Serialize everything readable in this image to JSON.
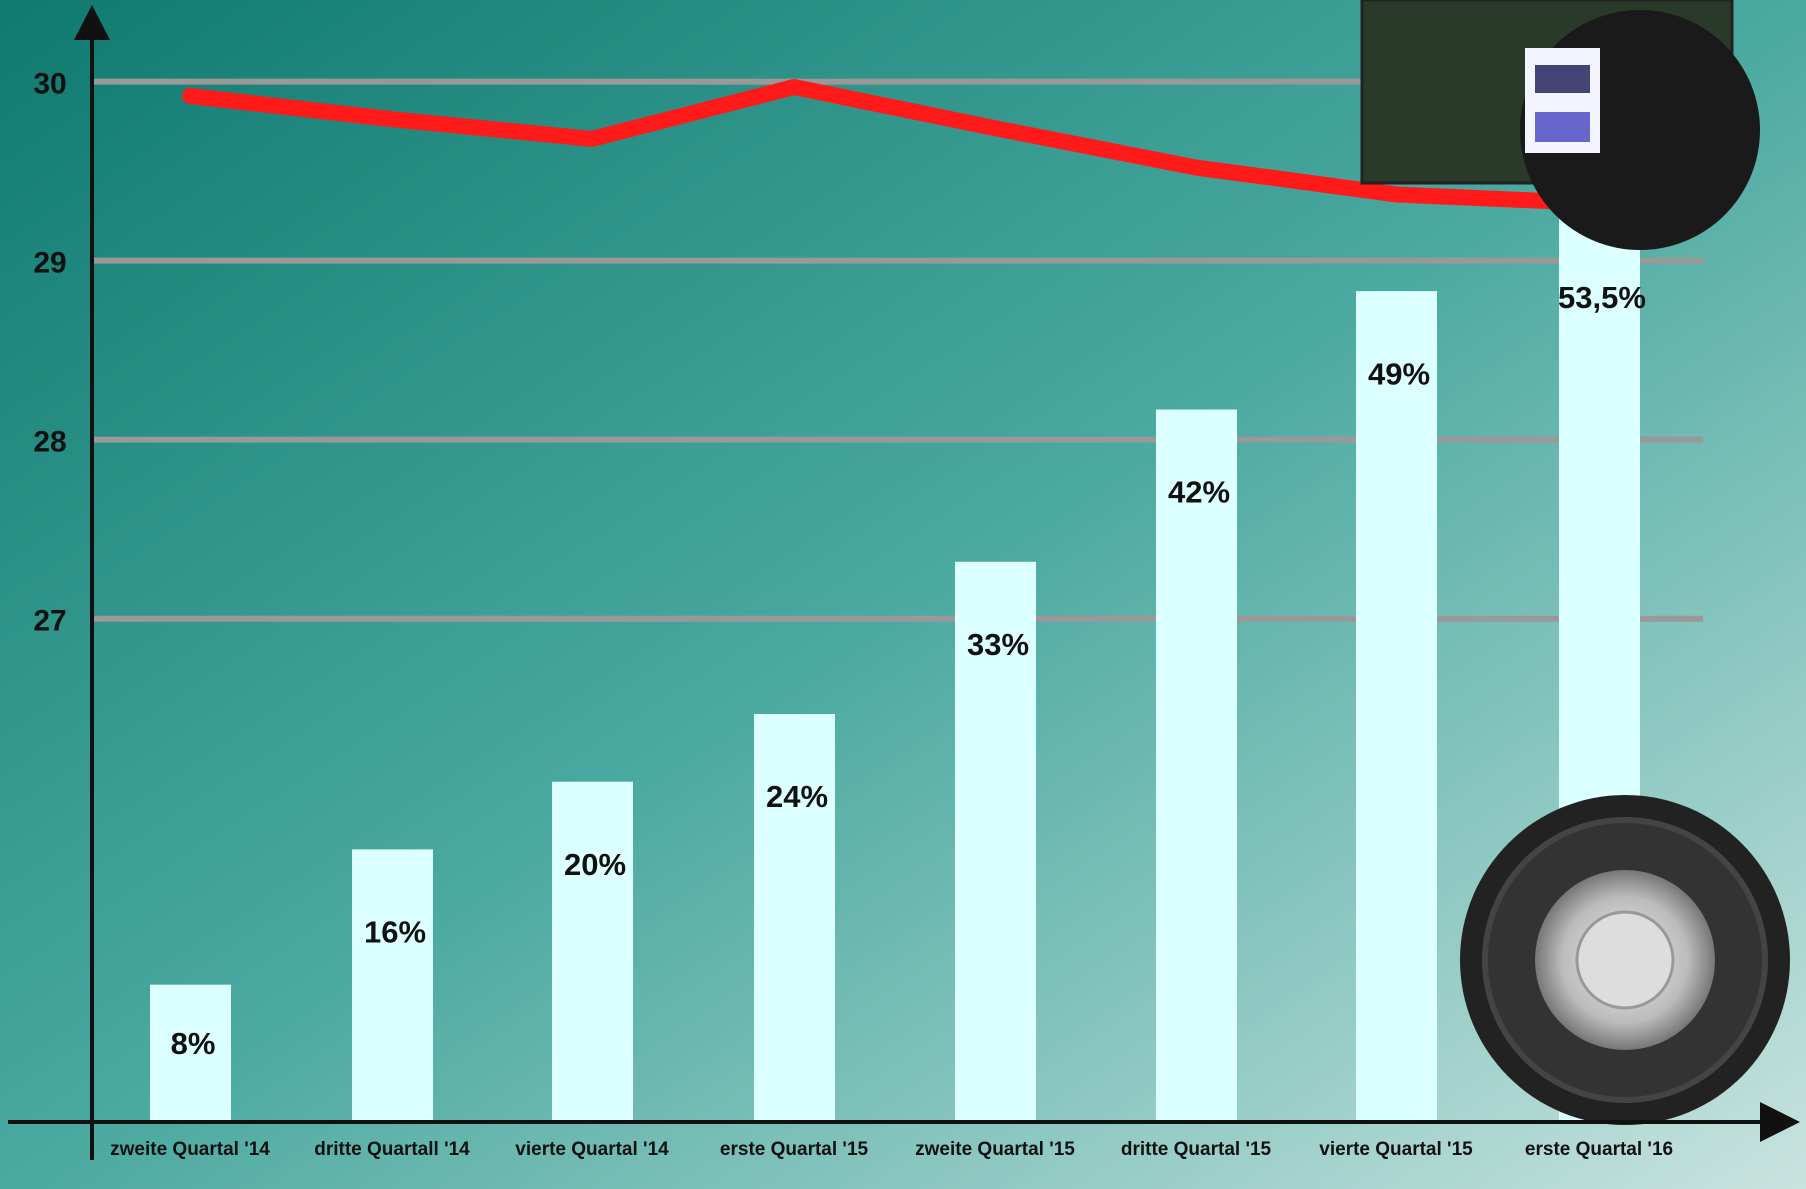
{
  "chart_data": {
    "type": "bar",
    "categories": [
      "zweite Quartal '14",
      "dritte Quartall '14",
      "vierte Quartal '14",
      "erste Quartal '15",
      "zweite Quartal '15",
      "dritte Quartal '15",
      "vierte Quartal '15",
      "erste Quartal '16"
    ],
    "series": [
      {
        "type": "bar",
        "color": "#dcffff",
        "values": [
          8,
          16,
          20,
          24,
          33,
          42,
          49,
          53.5
        ],
        "value_labels": [
          "8%",
          "16%",
          "20%",
          "24%",
          "33%",
          "42%",
          "49%",
          "53,5%"
        ]
      },
      {
        "type": "line",
        "color": "#ff1a1a",
        "values": [
          29.92,
          29.79,
          29.68,
          29.97,
          29.74,
          29.52,
          29.37,
          29.32
        ]
      }
    ],
    "ylim": [
      24.2,
      30.4
    ],
    "yticks": [
      27,
      28,
      29,
      30
    ],
    "grid": true
  }
}
